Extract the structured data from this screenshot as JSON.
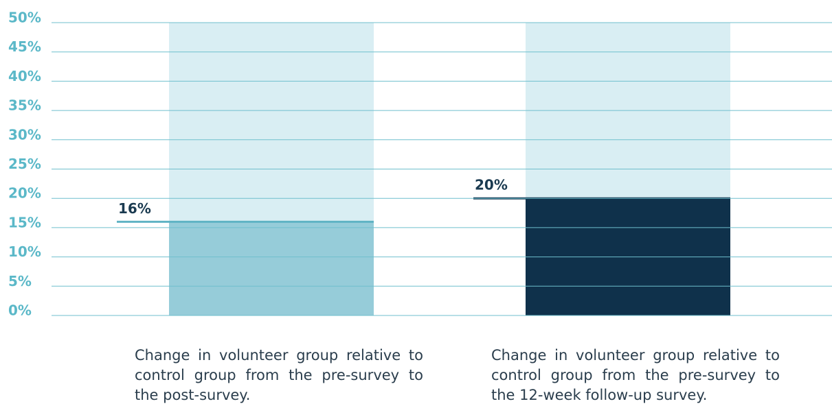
{
  "chart_data": {
    "type": "bar",
    "categories": [
      "Change in volunteer group relative to control group from the pre-survey to the post-survey.",
      "Change in volunteer group relative to control group from the pre-survey to the 12-week follow-up survey."
    ],
    "values": [
      16,
      20
    ],
    "value_labels": [
      "16%",
      "20%"
    ],
    "colors": [
      "#96ccd9",
      "#0f314b"
    ],
    "background_color": "#d9eef3",
    "ylim": [
      0,
      50
    ],
    "yticks": [
      {
        "value": 0,
        "label": "0%"
      },
      {
        "value": 5,
        "label": "5%"
      },
      {
        "value": 10,
        "label": "10%"
      },
      {
        "value": 15,
        "label": "15%"
      },
      {
        "value": 20,
        "label": "20%"
      },
      {
        "value": 25,
        "label": "25%"
      },
      {
        "value": 30,
        "label": "30%"
      },
      {
        "value": 35,
        "label": "35%"
      },
      {
        "value": 40,
        "label": "40%"
      },
      {
        "value": 45,
        "label": "45%"
      },
      {
        "value": 50,
        "label": "50%"
      }
    ],
    "grid": true
  }
}
